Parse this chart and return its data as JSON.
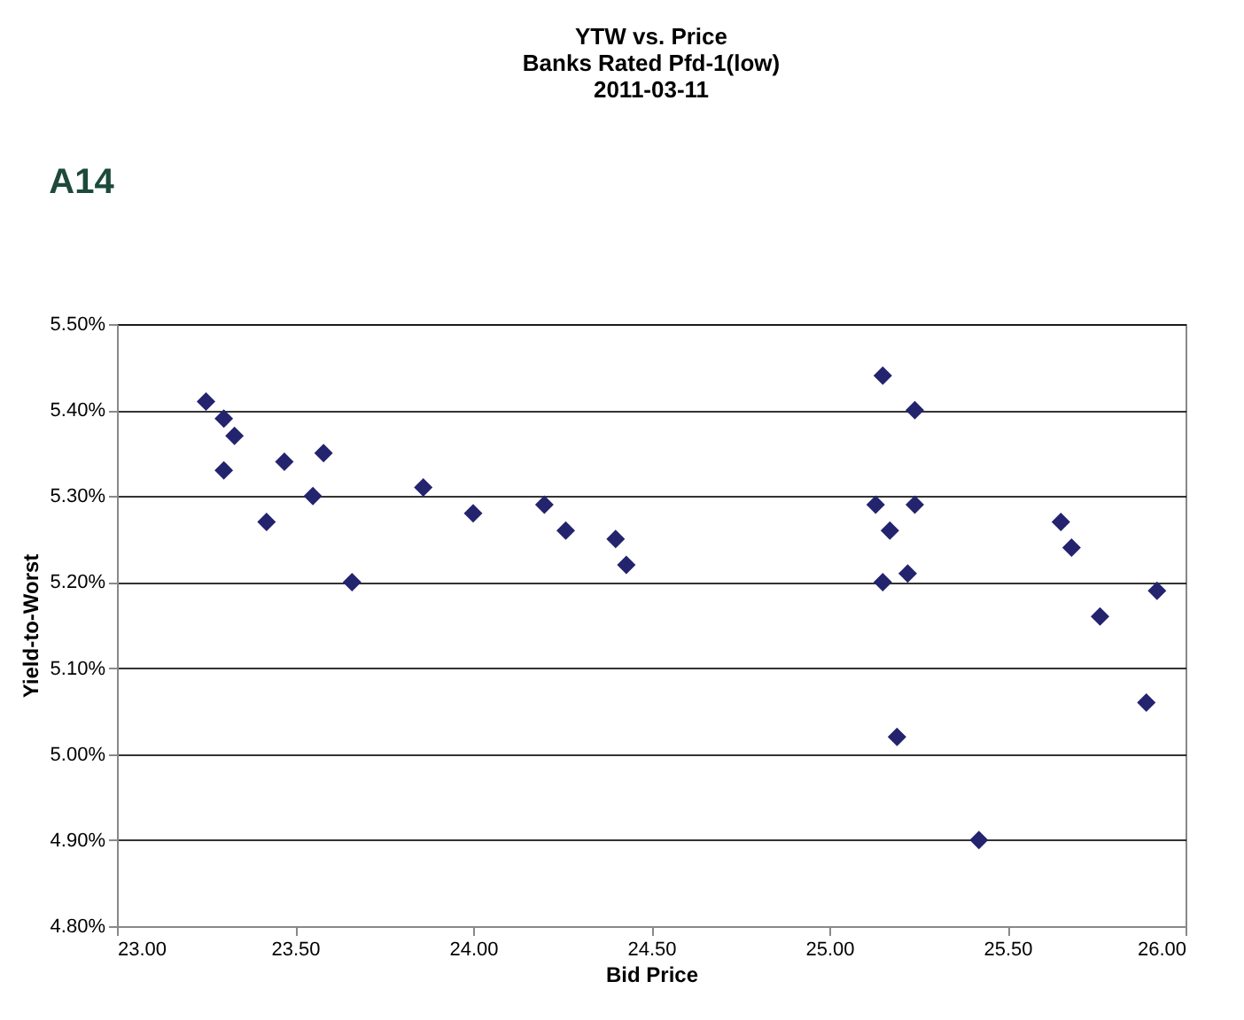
{
  "chart_data": {
    "type": "scatter",
    "title": "YTW vs. Price\nBanks Rated Pfd-1(low)\n2011-03-11",
    "xlabel": "Bid Price",
    "ylabel": "Yield-to-Worst",
    "annotations": [
      "A14"
    ],
    "x": [
      23.25,
      23.3,
      23.33,
      23.3,
      23.42,
      23.47,
      23.55,
      23.58,
      23.66,
      23.86,
      24.0,
      24.2,
      24.26,
      24.4,
      24.43,
      25.13,
      25.15,
      25.15,
      25.17,
      25.19,
      25.22,
      25.24,
      25.24,
      25.42,
      25.65,
      25.68,
      25.76,
      25.89,
      25.92
    ],
    "series": [
      {
        "color": "#23236e",
        "values": [
          5.41,
          5.39,
          5.37,
          5.33,
          5.27,
          5.34,
          5.3,
          5.35,
          5.2,
          5.31,
          5.28,
          5.29,
          5.26,
          5.25,
          5.22,
          5.29,
          5.44,
          5.2,
          5.26,
          5.02,
          5.21,
          5.4,
          5.29,
          4.9,
          5.27,
          5.24,
          5.16,
          5.06,
          5.19
        ]
      }
    ],
    "xlim": [
      23,
      26
    ],
    "xticks": [
      {
        "value": 23,
        "label": "23.00"
      },
      {
        "value": 23.5,
        "label": "23.50"
      },
      {
        "value": 24,
        "label": "24.00"
      },
      {
        "value": 24.5,
        "label": "24.50"
      },
      {
        "value": 25,
        "label": "25.00"
      },
      {
        "value": 25.5,
        "label": "25.50"
      },
      {
        "value": 26,
        "label": "26.00"
      }
    ],
    "ylim": [
      4.8,
      5.5
    ],
    "yticks": [
      {
        "value": 4.8,
        "label": "4.80%"
      },
      {
        "value": 4.9,
        "label": "4.90%"
      },
      {
        "value": 5.0,
        "label": "5.00%"
      },
      {
        "value": 5.1,
        "label": "5.10%"
      },
      {
        "value": 5.2,
        "label": "5.20%"
      },
      {
        "value": 5.3,
        "label": "5.30%"
      },
      {
        "value": 5.4,
        "label": "5.40%"
      },
      {
        "value": 5.5,
        "label": "5.50%"
      }
    ],
    "grid": "y",
    "marker": "diamond"
  }
}
